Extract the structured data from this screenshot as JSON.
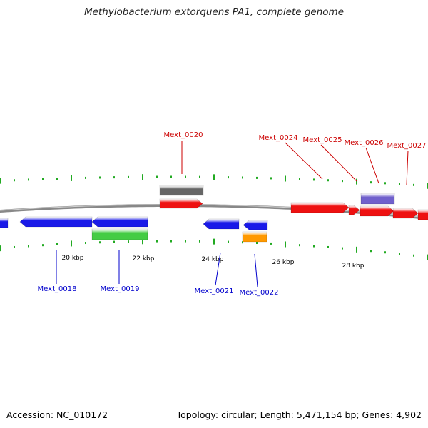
{
  "header": {
    "title": "Methylobacterium extorquens PA1, complete genome"
  },
  "footer": {
    "accession": "Accession: NC_010172",
    "topology": "Topology: circular; Length: 5,471,154 bp; Genes: 4,902"
  },
  "colors": {
    "forward_cds": "#ee1111",
    "reverse_cds": "#1a1ae8",
    "gray_feature": "#666666",
    "green_feature": "#44cc44",
    "orange_feature": "#ff9900",
    "purple_feature": "#7060cc",
    "tick": "#22aa22",
    "backbone": "#888888",
    "forward_label": "#cc0000",
    "reverse_label": "#0000cc"
  },
  "scale": {
    "ticks": [
      {
        "label": "20 kbp"
      },
      {
        "label": "22 kbp"
      },
      {
        "label": "24 kbp"
      },
      {
        "label": "26 kbp"
      },
      {
        "label": "28 kbp"
      }
    ]
  },
  "genes": {
    "forward": [
      {
        "name": "Mext_0020"
      },
      {
        "name": "Mext_0024"
      },
      {
        "name": "Mext_0025"
      },
      {
        "name": "Mext_0026"
      },
      {
        "name": "Mext_0027"
      }
    ],
    "reverse": [
      {
        "name": "Mext_0018"
      },
      {
        "name": "Mext_0019"
      },
      {
        "name": "Mext_0021"
      },
      {
        "name": "Mext_0022"
      }
    ]
  }
}
